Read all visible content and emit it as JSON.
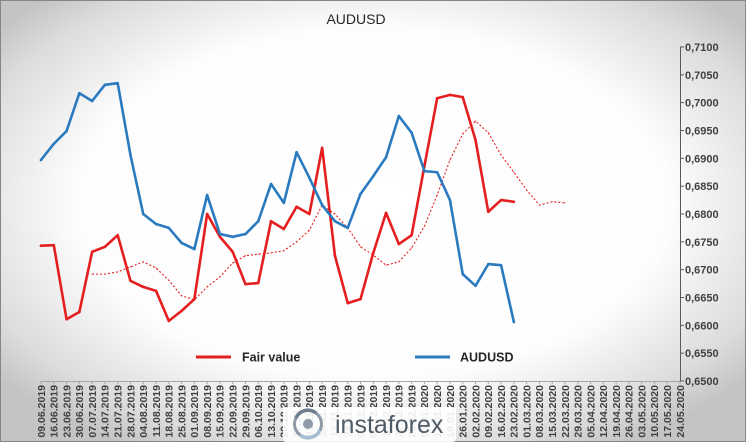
{
  "chart_data": {
    "type": "line",
    "title": "AUDUSD",
    "categories": [
      "09.06.2019",
      "16.06.2019",
      "23.06.2019",
      "30.06.2019",
      "07.07.2019",
      "14.07.2019",
      "21.07.2019",
      "28.07.2019",
      "04.08.2019",
      "11.08.2019",
      "18.08.2019",
      "25.08.2019",
      "01.09.2019",
      "08.09.2019",
      "15.09.2019",
      "22.09.2019",
      "29.09.2019",
      "06.10.2019",
      "13.10.2019",
      "20.10.2019",
      "27.10.2019",
      "03.11.2019",
      "10.11.2019",
      "17.11.2019",
      "24.11.2019",
      "01.12.2019",
      "08.12.2019",
      "15.12.2019",
      "22.12.2019",
      "29.12.2019",
      "05.01.2020",
      "12.01.2020",
      "19.01.2020",
      "26.01.2020",
      "02.02.2020",
      "09.02.2020",
      "16.02.2020",
      "23.02.2020",
      "01.03.2020",
      "08.03.2020",
      "15.03.2020",
      "22.03.2020",
      "29.03.2020",
      "05.04.2020",
      "12.04.2020",
      "19.04.2020",
      "26.04.2020",
      "03.05.2020",
      "10.05.2020",
      "17.05.2020",
      "24.05.2020"
    ],
    "series": [
      {
        "name": "Fair value",
        "color": "#e51f1f",
        "line_style": "solid",
        "values": [
          0.6743,
          0.6744,
          0.6611,
          0.6624,
          0.6732,
          0.6741,
          0.6762,
          0.668,
          0.6669,
          0.6662,
          0.6608,
          0.6626,
          0.6647,
          0.68,
          0.6759,
          0.6732,
          0.6674,
          0.6676,
          0.6787,
          0.6773,
          0.6813,
          0.68,
          0.6919,
          0.6725,
          0.664,
          0.6647,
          0.673,
          0.6802,
          0.6746,
          0.6762,
          0.6886,
          0.7008,
          0.7014,
          0.701,
          0.6933,
          0.6804,
          0.6825,
          0.6822,
          null,
          null,
          null,
          null,
          null,
          null,
          null,
          null,
          null,
          null,
          null,
          null,
          null
        ]
      },
      {
        "name": "AUDUSD",
        "color": "#2a7abf",
        "line_style": "solid",
        "values": [
          0.6897,
          0.6926,
          0.6949,
          0.7017,
          0.7003,
          0.7032,
          0.7035,
          0.6906,
          0.68,
          0.6782,
          0.6775,
          0.6748,
          0.6737,
          0.6834,
          0.6764,
          0.6759,
          0.6764,
          0.6787,
          0.6854,
          0.682,
          0.6911,
          0.6865,
          0.6816,
          0.6787,
          0.6775,
          0.6836,
          0.6868,
          0.6902,
          0.6976,
          0.6946,
          0.6877,
          0.6875,
          0.6825,
          0.6692,
          0.6671,
          0.671,
          0.6708,
          0.6606,
          null,
          null,
          null,
          null,
          null,
          null,
          null,
          null,
          null,
          null,
          null,
          null,
          null
        ]
      },
      {
        "color": "#e51f1f",
        "line_style": "dotted",
        "values": [
          null,
          null,
          null,
          null,
          0.6692,
          0.6692,
          0.6696,
          0.6705,
          0.6714,
          0.6703,
          0.6681,
          0.6653,
          0.6646,
          0.6669,
          0.6687,
          0.6712,
          0.6725,
          0.6728,
          0.673,
          0.6734,
          0.675,
          0.6771,
          0.6816,
          0.68,
          0.6775,
          0.6741,
          0.6726,
          0.6708,
          0.6714,
          0.6739,
          0.6778,
          0.6834,
          0.6897,
          0.6944,
          0.6967,
          0.6946,
          0.6906,
          0.6875,
          0.6843,
          0.6816,
          0.6822,
          0.682,
          null,
          null,
          null,
          null,
          null,
          null,
          null,
          null,
          null
        ]
      }
    ],
    "ylim": [
      0.65,
      0.71
    ],
    "y_ticks": [
      0.65,
      0.655,
      0.66,
      0.665,
      0.67,
      0.675,
      0.68,
      0.685,
      0.69,
      0.695,
      0.7,
      0.705,
      0.71
    ],
    "y_tick_labels": [
      "0,6500",
      "0,6550",
      "0,6600",
      "0,6650",
      "0,6700",
      "0,6750",
      "0,6800",
      "0,6850",
      "0,6900",
      "0,6950",
      "0,7000",
      "0,7050",
      "0,7100"
    ],
    "y_axis_side": "right",
    "grid": false,
    "legend": "bottom"
  },
  "watermark": {
    "text": "instaforex",
    "icon": "instaforex-logo-icon"
  }
}
